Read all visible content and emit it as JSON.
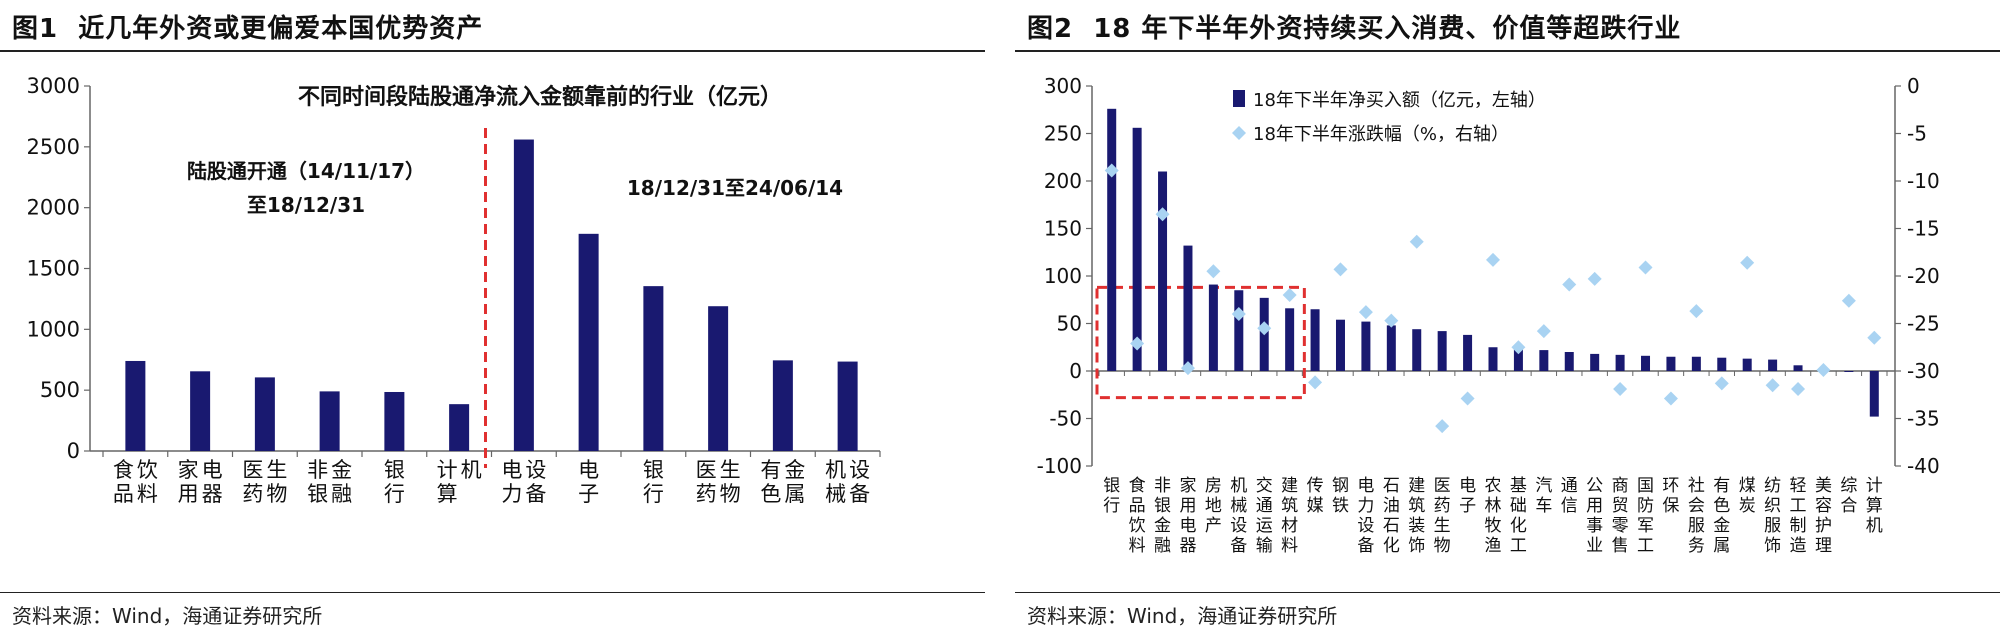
{
  "figures": [
    {
      "label": "图1",
      "title": "近几年外资或更偏爱本国优势资产",
      "source": "资料来源：Wind，海通证券研究所"
    },
    {
      "label": "图2",
      "title": "18 年下半年外资持续买入消费、价值等超跌行业",
      "source": "资料来源：Wind，海通证券研究所"
    }
  ],
  "chart_data": [
    {
      "type": "bar",
      "title": "不同时间段陆股通净流入金额靠前的行业（亿元）",
      "ylim": [
        0,
        3000
      ],
      "yticks": [
        0,
        500,
        1000,
        1500,
        2000,
        2500,
        3000
      ],
      "grid": false,
      "categories": [
        "食品饮料",
        "家用电器",
        "医药生物",
        "非银金融",
        "银行",
        "计算机",
        "电力设备",
        "电子",
        "银行",
        "医药生物",
        "有色金属",
        "机械设备"
      ],
      "values": [
        740,
        655,
        605,
        490,
        485,
        385,
        2560,
        1785,
        1355,
        1190,
        745,
        735
      ],
      "divider_after_index": 5,
      "divider_color": "#e03030",
      "bar_color": "#191970",
      "annotations": [
        {
          "text": "陆股通开通（14/11/17）",
          "text2": "至18/12/31"
        },
        {
          "text": "18/12/31至24/06/14"
        }
      ]
    },
    {
      "type": "bar+scatter",
      "grid": false,
      "categories": [
        "银行",
        "食品饮料",
        "非银金融",
        "家用电器",
        "房地产",
        "机械设备",
        "交通运输",
        "建筑材料",
        "传媒",
        "钢铁",
        "电力设备",
        "石油石化",
        "建筑装饰",
        "医药生物",
        "电子",
        "农林牧渔",
        "基础化工",
        "汽车",
        "通信",
        "公用事业",
        "商贸零售",
        "国防军工",
        "环保",
        "社会服务",
        "有色金属",
        "煤炭",
        "纺织服饰",
        "轻工制造",
        "美容护理",
        "综合",
        "计算机"
      ],
      "series": [
        {
          "name": "18年下半年净买入额（亿元，左轴）",
          "type": "bar",
          "axis": "left",
          "color": "#191970",
          "values": [
            276,
            256,
            210,
            132,
            91,
            85,
            77,
            66,
            65,
            54,
            52,
            48,
            44,
            42,
            38,
            25,
            23,
            22,
            20,
            18,
            17,
            16,
            15,
            15,
            14,
            13,
            12,
            6,
            -1,
            -1,
            -48
          ]
        },
        {
          "name": "18年下半年涨跌幅（%，右轴）",
          "type": "scatter",
          "axis": "right",
          "color": "#a9d3f2",
          "values": [
            -8.9,
            -27.1,
            -13.5,
            -29.7,
            -19.5,
            -24.0,
            -25.5,
            -22.0,
            -31.2,
            -19.3,
            -23.8,
            -24.7,
            -16.4,
            -35.8,
            -32.9,
            -18.3,
            -27.5,
            -25.8,
            -20.9,
            -20.3,
            -31.9,
            -19.1,
            -32.9,
            -23.7,
            -31.3,
            -18.6,
            -31.5,
            -31.9,
            -29.9,
            -22.6,
            -26.5
          ]
        }
      ],
      "ylim_left": [
        -100,
        300
      ],
      "yticks_left": [
        -100,
        -50,
        0,
        50,
        100,
        150,
        200,
        250,
        300
      ],
      "ylim_right": [
        -40,
        0
      ],
      "yticks_right": [
        -40,
        -35,
        -30,
        -25,
        -20,
        -15,
        -10,
        -5,
        0
      ],
      "highlight_box": {
        "from_index": 0,
        "to_index": 7,
        "color": "#e03030"
      },
      "legend": "top-left"
    }
  ]
}
